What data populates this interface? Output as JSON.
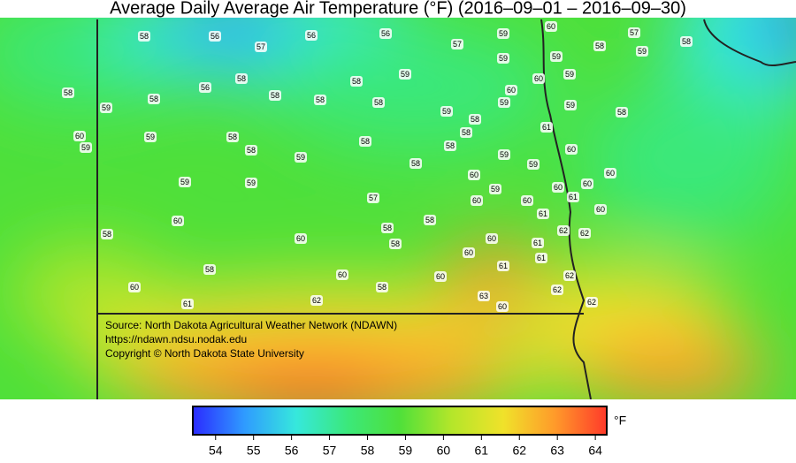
{
  "title": "Average Daily Average Air Temperature (°F) (2016–09–01 – 2016–09–30)",
  "stations": [
    58,
    56,
    57,
    56,
    56,
    57,
    59,
    60,
    58,
    57,
    58,
    59,
    59,
    59,
    58,
    56,
    58,
    58,
    59,
    60,
    59,
    59,
    58,
    58,
    58,
    58,
    59,
    60,
    59,
    59,
    58,
    58,
    60,
    59,
    59,
    58,
    58,
    58,
    58,
    58,
    61,
    60,
    59,
    58,
    59,
    59,
    60,
    59,
    59,
    60,
    59,
    60,
    60,
    60,
    61,
    57,
    60,
    61,
    60,
    60,
    58,
    58,
    62,
    62,
    58,
    60,
    58,
    60,
    61,
    60,
    61,
    61,
    58,
    60,
    60,
    62,
    60,
    58,
    62,
    63,
    62,
    61,
    62,
    60
  ],
  "source": [
    "Source: North Dakota Agricultural Weather Network (NDAWN)",
    "https://ndawn.ndsu.nodak.edu",
    "Copyright © North Dakota State University"
  ],
  "colorbar": {
    "lim": [
      53.4,
      64.3
    ],
    "ticks": [
      54,
      55,
      56,
      57,
      58,
      59,
      60,
      61,
      62,
      63,
      64
    ],
    "unit": "°F",
    "colors": [
      "#2b2bff",
      "#2f9bff",
      "#36e8dc",
      "#3be87a",
      "#4fe03a",
      "#b4e62a",
      "#f0e22a",
      "#ff9a2a",
      "#ff3a2a"
    ]
  }
}
